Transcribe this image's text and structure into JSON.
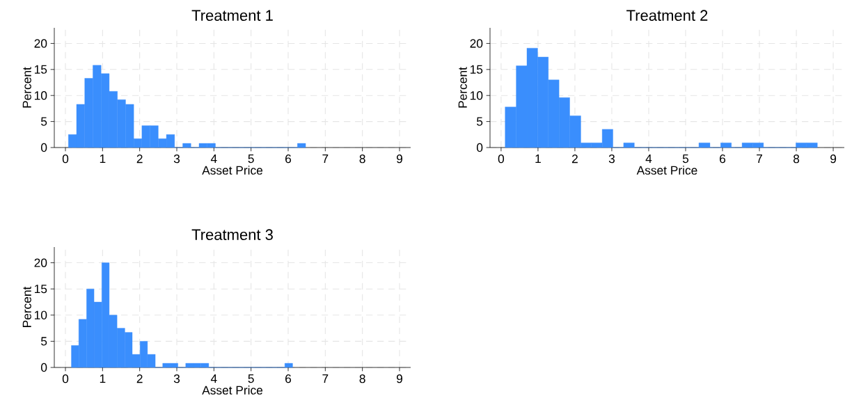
{
  "chart_data": [
    {
      "type": "histogram",
      "title": "Treatment 1",
      "xlabel": "Asset Price",
      "ylabel": "Percent",
      "color": "#3a8efd",
      "grid": true,
      "bins": [
        0.08,
        0.3,
        0.52,
        0.74,
        0.96,
        1.18,
        1.4,
        1.62,
        1.84,
        2.06,
        2.28,
        2.5,
        2.72,
        2.94,
        3.16,
        3.38,
        3.6,
        3.82,
        4.04,
        4.27,
        4.49,
        4.71,
        4.93,
        5.15,
        5.37,
        5.59,
        5.81,
        6.03,
        6.25,
        6.47
      ],
      "values": [
        2.5,
        8.3,
        13.3,
        15.8,
        14.2,
        10.8,
        9.2,
        8.3,
        1.7,
        4.2,
        4.2,
        1.7,
        2.5,
        0,
        0.8,
        0,
        0.8,
        0.8,
        0,
        0,
        0,
        0,
        0,
        0,
        0,
        0,
        0,
        0,
        0.8
      ],
      "xlim": [
        -0.3,
        9.3
      ],
      "ylim": [
        0,
        23
      ],
      "xticks": [
        0,
        1,
        2,
        3,
        4,
        5,
        6,
        7,
        8,
        9
      ],
      "yticks": [
        0,
        5,
        10,
        15,
        20
      ]
    },
    {
      "type": "histogram",
      "title": "Treatment 2",
      "xlabel": "Asset Price",
      "ylabel": "Percent",
      "color": "#3a8efd",
      "grid": true,
      "bins": [
        0.11,
        0.41,
        0.7,
        0.99,
        1.28,
        1.57,
        1.86,
        2.16,
        2.45,
        2.74,
        3.03,
        3.32,
        3.61,
        3.91,
        4.2,
        4.49,
        4.78,
        5.07,
        5.36,
        5.66,
        5.95,
        6.24,
        6.53,
        6.82,
        7.11,
        7.41,
        7.7,
        7.99,
        8.28,
        8.57
      ],
      "values": [
        7.8,
        15.7,
        19.1,
        17.4,
        13.0,
        9.6,
        6.1,
        0.9,
        0.9,
        3.5,
        0,
        0.9,
        0,
        0,
        0,
        0,
        0,
        0,
        0.9,
        0,
        0.9,
        0,
        0.9,
        0.9,
        0,
        0,
        0,
        0.9,
        0.9
      ],
      "xlim": [
        -0.3,
        9.3
      ],
      "ylim": [
        0,
        23
      ],
      "xticks": [
        0,
        1,
        2,
        3,
        4,
        5,
        6,
        7,
        8,
        9
      ],
      "yticks": [
        0,
        5,
        10,
        15,
        20
      ]
    },
    {
      "type": "histogram",
      "title": "Treatment 3",
      "xlabel": "Asset Price",
      "ylabel": "Percent",
      "color": "#3a8efd",
      "grid": true,
      "bins": [
        0.16,
        0.36,
        0.57,
        0.77,
        0.98,
        1.18,
        1.39,
        1.6,
        1.8,
        2.01,
        2.21,
        2.42,
        2.62,
        2.83,
        3.03,
        3.24,
        3.45,
        3.65,
        3.86,
        4.06,
        4.27,
        4.47,
        4.68,
        4.89,
        5.09,
        5.3,
        5.5,
        5.71,
        5.91,
        6.12
      ],
      "values": [
        4.2,
        9.2,
        15.0,
        12.5,
        20.0,
        10.0,
        7.5,
        6.7,
        2.5,
        5.0,
        2.5,
        0,
        0.8,
        0.8,
        0,
        0.8,
        0.8,
        0.8,
        0,
        0,
        0,
        0,
        0,
        0,
        0,
        0,
        0,
        0,
        0.8
      ],
      "xlim": [
        -0.3,
        9.3
      ],
      "ylim": [
        0,
        23
      ],
      "xticks": [
        0,
        1,
        2,
        3,
        4,
        5,
        6,
        7,
        8,
        9
      ],
      "yticks": [
        0,
        5,
        10,
        15,
        20
      ]
    }
  ]
}
